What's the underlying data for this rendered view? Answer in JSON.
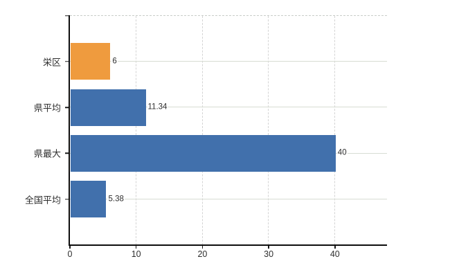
{
  "chart_data": {
    "type": "bar",
    "orientation": "horizontal",
    "title": "",
    "xlabel": "",
    "ylabel": "",
    "categories": [
      "栄区",
      "県平均",
      "県最大",
      "全国平均"
    ],
    "values": [
      6,
      11.34,
      40,
      5.38
    ],
    "value_labels": [
      "6",
      "11.34",
      "40",
      "5.38"
    ],
    "bar_colors": [
      "#EF9B3E",
      "#4170AC",
      "#4170AC",
      "#4170AC"
    ],
    "x_ticks": [
      0,
      10,
      20,
      30,
      40
    ],
    "xlim": [
      0,
      48
    ],
    "grid": true,
    "grid_style": "dashed-vertical, solid-horizontal, dashed-top-border",
    "legend": false,
    "colors": {
      "highlight_orange": "#EF9B3E",
      "series_blue": "#4170AC",
      "gridline_vertical": "#d4d4d4",
      "gridline_horizontal": "#d7dcd3",
      "axis": "#0d0d0d",
      "text": "#2e2e2e",
      "background": "#ffffff"
    }
  }
}
